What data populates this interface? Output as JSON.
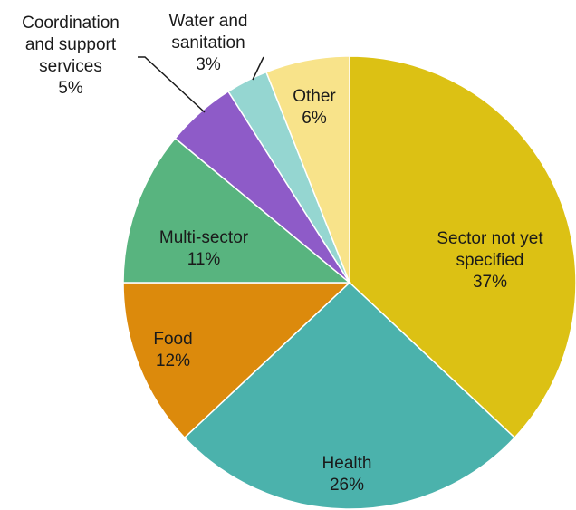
{
  "chart_data": {
    "type": "pie",
    "title": "",
    "slices": [
      {
        "label_lines": [
          "Sector not yet",
          "specified"
        ],
        "percent_label": "37%",
        "value": 37,
        "color": "#DCC114"
      },
      {
        "label_lines": [
          "Health"
        ],
        "percent_label": "26%",
        "value": 26,
        "color": "#4BB2AC"
      },
      {
        "label_lines": [
          "Food"
        ],
        "percent_label": "12%",
        "value": 12,
        "color": "#DC8A0C"
      },
      {
        "label_lines": [
          "Multi-sector"
        ],
        "percent_label": "11%",
        "value": 11,
        "color": "#58B47F"
      },
      {
        "label_lines": [
          "Coordination",
          "and support",
          "services"
        ],
        "percent_label": "5%",
        "value": 5,
        "color": "#8E5BC8"
      },
      {
        "label_lines": [
          "Water and",
          "sanitation"
        ],
        "percent_label": "3%",
        "value": 3,
        "color": "#95D6D1"
      },
      {
        "label_lines": [
          "Other"
        ],
        "percent_label": "6%",
        "value": 6,
        "color": "#F8E38A"
      }
    ]
  }
}
